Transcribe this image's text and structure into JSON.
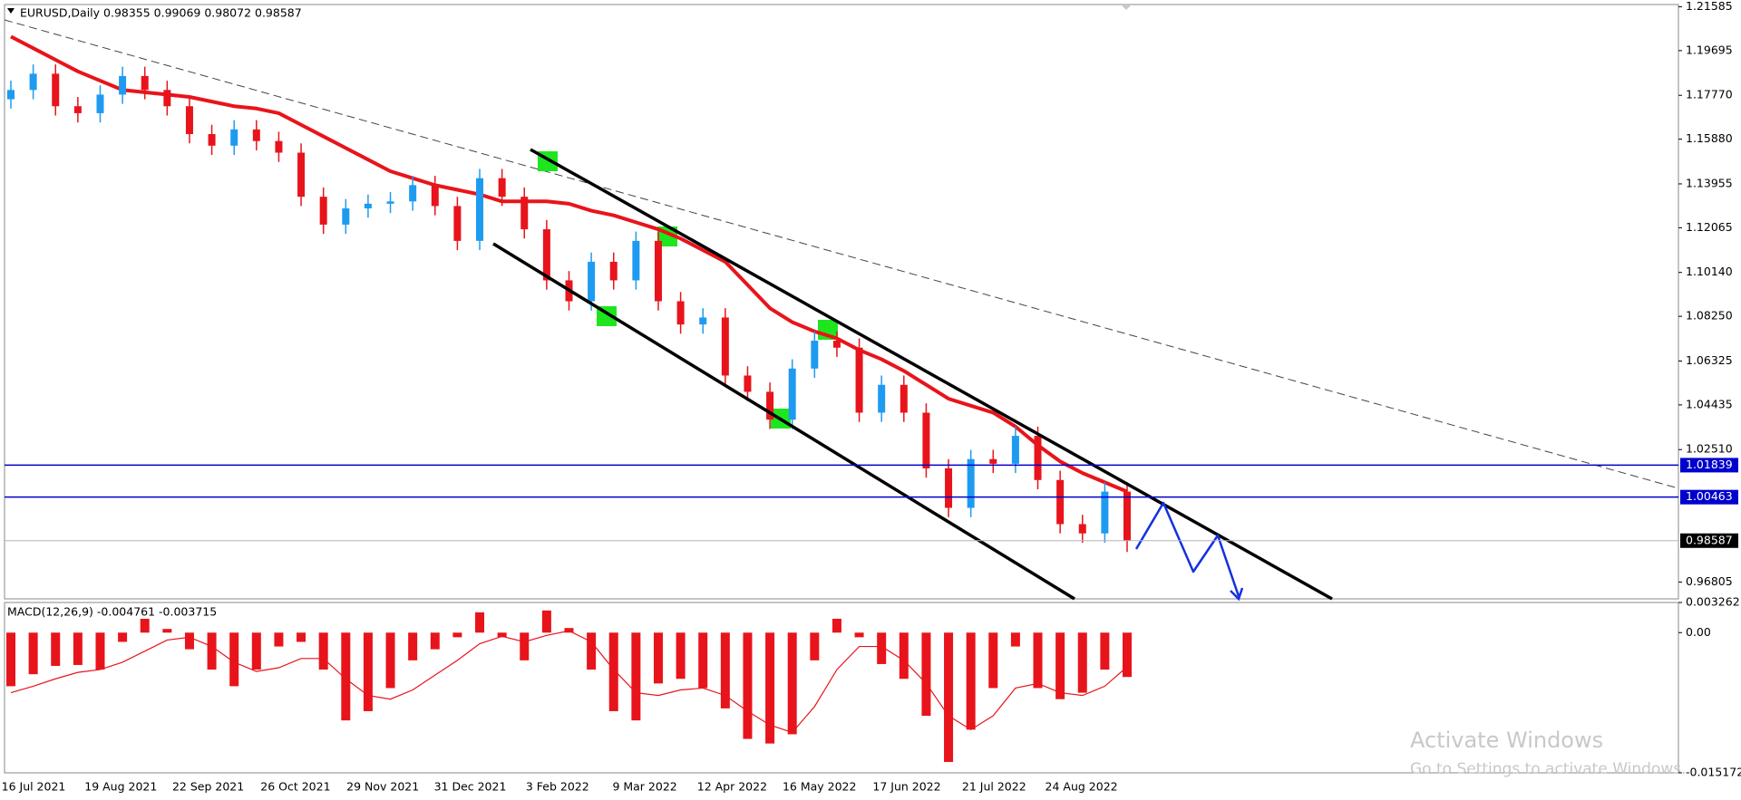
{
  "chart_data": [
    {
      "type": "candlestick",
      "title": "EURUSD,Daily  0.98355 0.99069 0.98072 0.98587",
      "up_color": "#1e9bf0",
      "down_color": "#e8141b",
      "open": [
        1.176,
        1.18,
        1.187,
        1.173,
        1.17,
        1.178,
        1.186,
        1.18,
        1.173,
        1.161,
        1.156,
        1.163,
        1.158,
        1.153,
        1.134,
        1.122,
        1.129,
        1.131,
        1.132,
        1.139,
        1.13,
        1.115,
        1.142,
        1.134,
        1.12,
        1.098,
        1.089,
        1.106,
        1.098,
        1.115,
        1.089,
        1.079,
        1.082,
        1.057,
        1.05,
        1.038,
        1.06,
        1.072,
        1.069,
        1.041,
        1.053,
        1.041,
        1.017,
        1.0,
        1.021,
        1.019,
        1.031,
        1.012,
        0.993,
        0.989,
        1.007
      ],
      "high": [
        1.184,
        1.191,
        1.191,
        1.177,
        1.182,
        1.19,
        1.19,
        1.184,
        1.177,
        1.165,
        1.167,
        1.167,
        1.162,
        1.157,
        1.138,
        1.133,
        1.135,
        1.136,
        1.143,
        1.143,
        1.134,
        1.146,
        1.146,
        1.138,
        1.124,
        1.102,
        1.11,
        1.11,
        1.119,
        1.119,
        1.093,
        1.086,
        1.086,
        1.061,
        1.054,
        1.064,
        1.076,
        1.076,
        1.073,
        1.057,
        1.057,
        1.045,
        1.021,
        1.025,
        1.025,
        1.035,
        1.035,
        1.016,
        0.997,
        1.011,
        1.011
      ],
      "low": [
        1.172,
        1.176,
        1.169,
        1.166,
        1.166,
        1.174,
        1.176,
        1.169,
        1.157,
        1.152,
        1.152,
        1.154,
        1.149,
        1.13,
        1.118,
        1.118,
        1.125,
        1.127,
        1.128,
        1.126,
        1.111,
        1.111,
        1.13,
        1.116,
        1.094,
        1.085,
        1.085,
        1.094,
        1.094,
        1.085,
        1.075,
        1.075,
        1.053,
        1.046,
        1.034,
        1.034,
        1.056,
        1.065,
        1.037,
        1.037,
        1.037,
        1.013,
        0.996,
        0.996,
        1.015,
        1.015,
        1.008,
        0.989,
        0.985,
        0.985,
        0.981
      ],
      "close": [
        1.18,
        1.187,
        1.173,
        1.17,
        1.178,
        1.186,
        1.18,
        1.173,
        1.161,
        1.156,
        1.163,
        1.158,
        1.153,
        1.134,
        1.122,
        1.129,
        1.131,
        1.132,
        1.139,
        1.13,
        1.115,
        1.142,
        1.134,
        1.12,
        1.098,
        1.089,
        1.106,
        1.098,
        1.115,
        1.089,
        1.079,
        1.082,
        1.057,
        1.05,
        1.038,
        1.06,
        1.072,
        1.069,
        1.041,
        1.053,
        1.041,
        1.017,
        1.0,
        1.021,
        1.019,
        1.031,
        1.012,
        0.993,
        0.989,
        1.007,
        0.98587
      ],
      "ma_color": "#e8141b",
      "ma_values": [
        1.203,
        1.198,
        1.193,
        1.188,
        1.184,
        1.18,
        1.179,
        1.178,
        1.177,
        1.175,
        1.173,
        1.172,
        1.17,
        1.165,
        1.16,
        1.155,
        1.15,
        1.145,
        1.142,
        1.139,
        1.137,
        1.135,
        1.132,
        1.132,
        1.132,
        1.131,
        1.128,
        1.126,
        1.123,
        1.12,
        1.116,
        1.111,
        1.106,
        1.096,
        1.086,
        1.08,
        1.076,
        1.073,
        1.068,
        1.064,
        1.059,
        1.053,
        1.047,
        1.044,
        1.041,
        1.035,
        1.027,
        1.02,
        1.015,
        1.011,
        1.007
      ],
      "ylim": [
        0.9608,
        1.2168
      ],
      "yticks": [
        1.21585,
        1.19695,
        {
          "value": 1.1777,
          "label": "1.17770"
        },
        {
          "value": 1.1588,
          "label": "1.15880"
        },
        1.13955,
        1.12065,
        {
          "value": 1.1014,
          "label": "1.10140"
        },
        {
          "value": 1.0825,
          "label": "1.08250"
        },
        1.06325,
        1.04435,
        {
          "value": 1.0251,
          "label": "1.02510"
        },
        0.96805
      ],
      "levels": [
        1.01839,
        1.00463
      ],
      "level_color": "#0000cc",
      "current_price": 0.98587,
      "date_labels": [
        "16 Jul 2021",
        "19 Aug 2021",
        "22 Sep 2021",
        "26 Oct 2021",
        "29 Nov 2021",
        "31 Dec 2021",
        "3 Feb 2022",
        "9 Mar 2022",
        "12 Apr 2022",
        "16 May 2022",
        "17 Jun 2022",
        "21 Jul 2022",
        "24 Aug 2022"
      ]
    },
    {
      "type": "macd",
      "title": "MACD(12,26,9) -0.004761 -0.003715",
      "color": "#e8141b",
      "values": [
        -0.0058,
        -0.0045,
        -0.0036,
        -0.0035,
        -0.004,
        -0.001,
        0.0015,
        0.0004,
        -0.0018,
        -0.004,
        -0.0058,
        -0.004,
        -0.0015,
        -0.001,
        -0.004,
        -0.0095,
        -0.0085,
        -0.006,
        -0.003,
        -0.0018,
        -0.0005,
        0.0022,
        -0.0005,
        -0.003,
        0.0024,
        0.0005,
        -0.004,
        -0.0085,
        -0.0095,
        -0.0055,
        -0.005,
        -0.006,
        -0.0082,
        -0.0115,
        -0.012,
        -0.011,
        -0.003,
        0.0015,
        -0.0005,
        -0.0034,
        -0.005,
        -0.009,
        -0.014,
        -0.0105,
        -0.006,
        -0.0015,
        -0.006,
        -0.0072,
        -0.0065,
        -0.004,
        -0.0048
      ],
      "signal_color": "#e8141b",
      "signal_values": [
        -0.0065,
        -0.0058,
        -0.005,
        -0.0043,
        -0.004,
        -0.0032,
        -0.002,
        -0.0008,
        -0.0005,
        -0.0015,
        -0.0032,
        -0.0042,
        -0.0038,
        -0.0028,
        -0.0028,
        -0.005,
        -0.0068,
        -0.0072,
        -0.0062,
        -0.0046,
        -0.003,
        -0.0012,
        -0.0004,
        -0.001,
        -0.0003,
        0.0002,
        -0.001,
        -0.004,
        -0.0065,
        -0.0068,
        -0.0062,
        -0.006,
        -0.0068,
        -0.0085,
        -0.01,
        -0.0108,
        -0.008,
        -0.004,
        -0.0015,
        -0.0015,
        -0.003,
        -0.0055,
        -0.009,
        -0.0105,
        -0.009,
        -0.006,
        -0.0055,
        -0.0065,
        -0.0068,
        -0.0058,
        -0.0037
      ],
      "ylim": [
        -0.015172,
        0.003262
      ],
      "yticks": [
        0.003262,
        {
          "value": 0,
          "label": "0.00"
        },
        -0.015172
      ]
    }
  ],
  "watermark": {
    "line1": "Activate Windows",
    "line2": "Go to Settings to activate Windows."
  }
}
